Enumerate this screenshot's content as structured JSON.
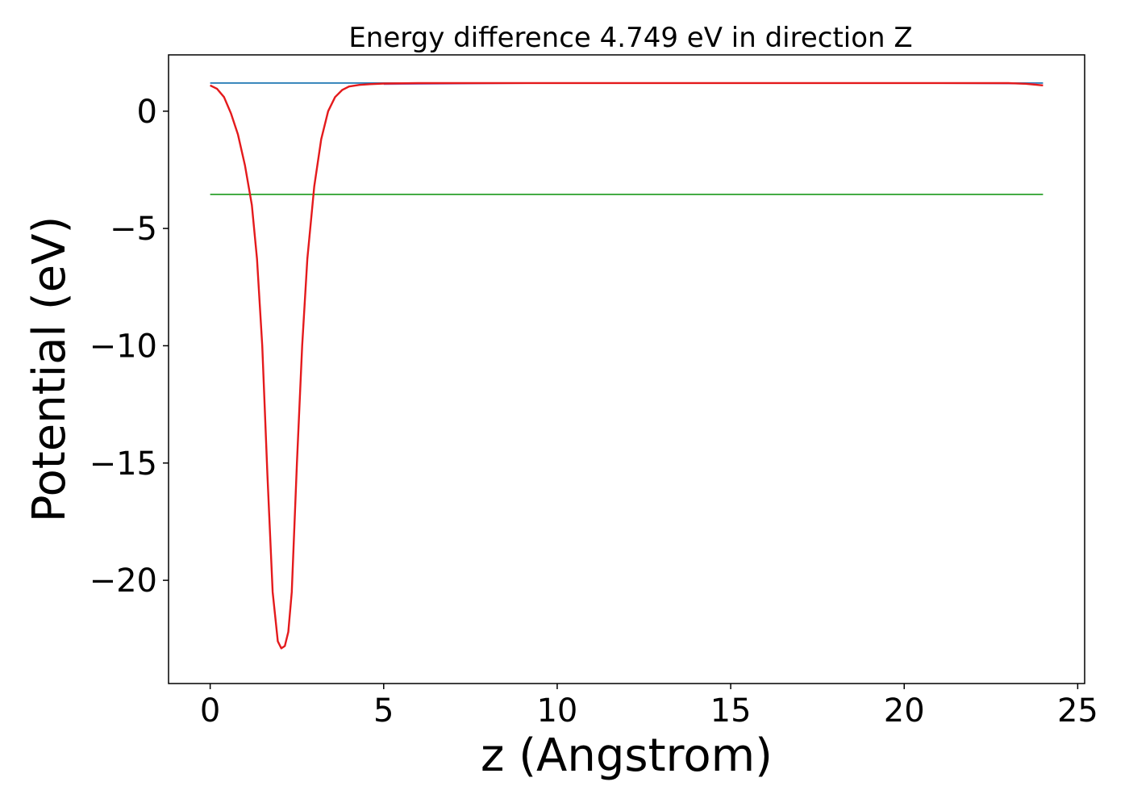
{
  "chart_data": {
    "type": "line",
    "title": "Energy difference 4.749 eV in direction Z",
    "xlabel": "z (Angstrom)",
    "ylabel": "Potential (eV)",
    "xlim": [
      -1.2,
      25.2
    ],
    "ylim": [
      -24.4,
      2.4
    ],
    "xticks": [
      0,
      5,
      10,
      15,
      20,
      25
    ],
    "xtick_labels": [
      "0",
      "5",
      "10",
      "15",
      "20",
      "25"
    ],
    "yticks": [
      0,
      -5,
      -10,
      -15,
      -20
    ],
    "ytick_labels": [
      "0",
      "−5",
      "−10",
      "−15",
      "−20"
    ],
    "grid": false,
    "series": [
      {
        "color": "#1f77b4",
        "x": [
          0,
          24
        ],
        "y": [
          1.2,
          1.2
        ]
      },
      {
        "color": "#2ca02c",
        "x": [
          0,
          24
        ],
        "y": [
          -3.55,
          -3.55
        ]
      },
      {
        "color": "#9467bd",
        "x": [
          5,
          10,
          15,
          20,
          23.8
        ],
        "y": [
          1.15,
          1.2,
          1.2,
          1.2,
          1.17
        ]
      },
      {
        "color": "#e41a1c",
        "x": [
          0,
          0.2,
          0.4,
          0.6,
          0.8,
          1.0,
          1.2,
          1.35,
          1.5,
          1.65,
          1.8,
          1.95,
          2.05,
          2.15,
          2.25,
          2.35,
          2.5,
          2.65,
          2.8,
          3.0,
          3.2,
          3.4,
          3.6,
          3.8,
          4.0,
          4.3,
          4.6,
          5.0,
          5.5,
          6.0,
          8.0,
          12.0,
          16.0,
          20.0,
          23.0,
          23.5,
          24.0
        ],
        "y": [
          1.1,
          0.95,
          0.6,
          -0.1,
          -1.0,
          -2.3,
          -4.0,
          -6.3,
          -10.0,
          -15.5,
          -20.5,
          -22.6,
          -22.9,
          -22.8,
          -22.2,
          -20.5,
          -15.0,
          -10.0,
          -6.3,
          -3.2,
          -1.2,
          0.0,
          0.6,
          0.9,
          1.05,
          1.12,
          1.15,
          1.18,
          1.19,
          1.2,
          1.2,
          1.2,
          1.2,
          1.2,
          1.2,
          1.17,
          1.1
        ]
      }
    ]
  }
}
